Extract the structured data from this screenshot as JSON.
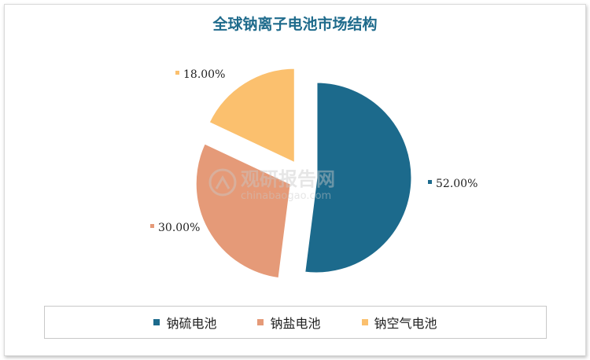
{
  "chart_data": {
    "type": "pie",
    "title": "全球钠离子电池市场结构",
    "categories": [
      "钠硫电池",
      "钠盐电池",
      "钠空气电池"
    ],
    "values": [
      52.0,
      30.0,
      18.0
    ],
    "data_labels": [
      "52.00%",
      "30.00%",
      "18.00%"
    ],
    "colors": [
      "#1c6a8c",
      "#e59a78",
      "#fbc06e"
    ],
    "exploded": true,
    "legend": "bottom"
  },
  "watermark": {
    "main": "观研报告网",
    "sub": "chinabaogao.com"
  }
}
